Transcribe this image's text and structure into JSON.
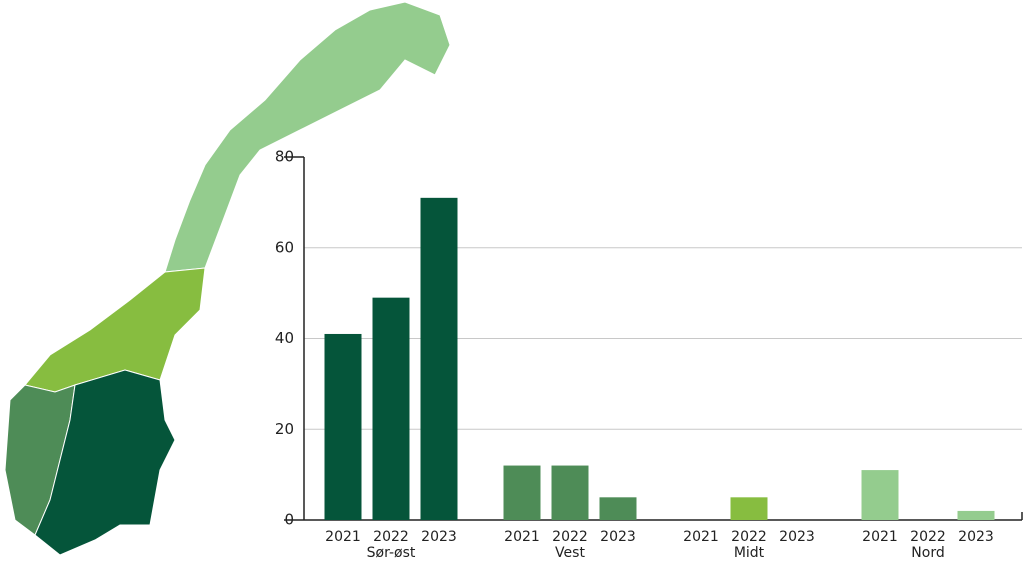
{
  "chart_data": {
    "type": "bar",
    "groups": [
      {
        "name": "Sør-øst",
        "color": "#05553a",
        "categories": [
          "2021",
          "2022",
          "2023"
        ],
        "values": [
          41,
          49,
          71
        ]
      },
      {
        "name": "Vest",
        "color": "#4e8c57",
        "categories": [
          "2021",
          "2022",
          "2023"
        ],
        "values": [
          12,
          12,
          5
        ]
      },
      {
        "name": "Midt",
        "color": "#87bd40",
        "categories": [
          "2021",
          "2022",
          "2023"
        ],
        "values": [
          0,
          5,
          0
        ]
      },
      {
        "name": "Nord",
        "color": "#94cc8e",
        "categories": [
          "2021",
          "2022",
          "2023"
        ],
        "values": [
          11,
          0,
          2
        ]
      }
    ],
    "ylim": [
      0,
      80
    ],
    "yticks": [
      0,
      20,
      40,
      60,
      80
    ],
    "grid": true
  }
}
